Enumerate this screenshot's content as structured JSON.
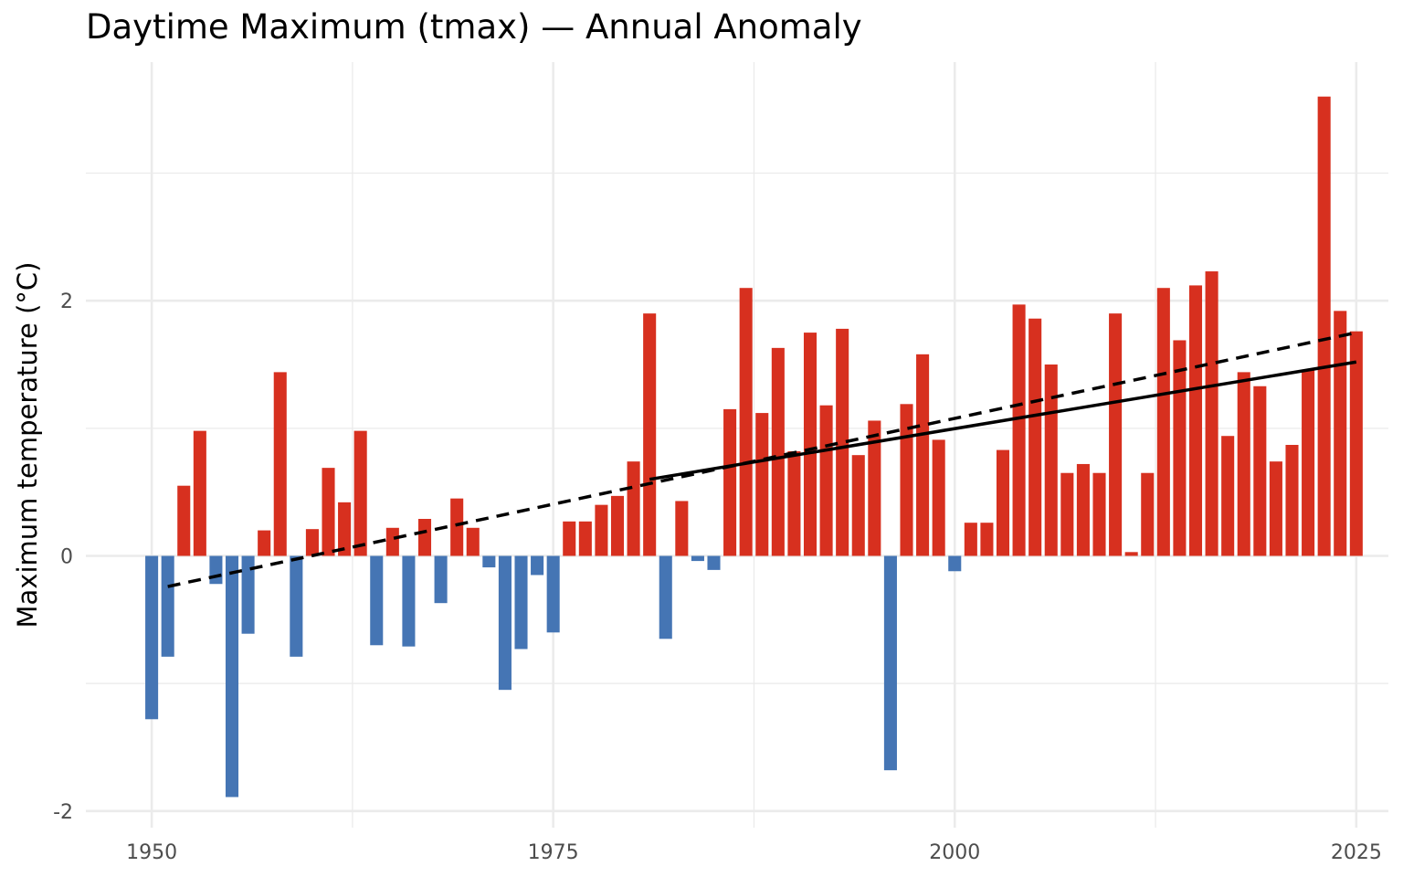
{
  "chart_data": {
    "type": "bar",
    "title": "Daytime Maximum (tmax) — Annual Anomaly",
    "xlabel": "",
    "ylabel": "Maximum temperature (°C)",
    "xlim": [
      1945.9,
      2027.0
    ],
    "ylim": [
      -2.13,
      3.87
    ],
    "x_ticks": [
      1950,
      1975,
      2000,
      2025
    ],
    "x_tick_labels": [
      "1950",
      "1975",
      "2000",
      "2025"
    ],
    "y_ticks": [
      -2,
      0,
      2
    ],
    "y_tick_labels": [
      "-2",
      "0",
      "2"
    ],
    "x_minor_ticks": [
      1962.5,
      1987.5,
      2012.5
    ],
    "y_minor_ticks": [
      -1,
      1,
      3
    ],
    "grid": true,
    "legend": "none",
    "colors": {
      "positive": "#d7301f",
      "negative": "#4575b4",
      "trend": "#000000"
    },
    "x": [
      1950,
      1951,
      1952,
      1953,
      1954,
      1955,
      1956,
      1957,
      1958,
      1959,
      1960,
      1961,
      1962,
      1963,
      1964,
      1965,
      1966,
      1967,
      1968,
      1969,
      1970,
      1971,
      1972,
      1973,
      1974,
      1975,
      1976,
      1977,
      1978,
      1979,
      1980,
      1981,
      1982,
      1983,
      1984,
      1985,
      1986,
      1987,
      1988,
      1989,
      1990,
      1991,
      1992,
      1993,
      1994,
      1995,
      1996,
      1997,
      1998,
      1999,
      2000,
      2001,
      2002,
      2003,
      2004,
      2005,
      2006,
      2007,
      2008,
      2009,
      2010,
      2011,
      2012,
      2013,
      2014,
      2015,
      2016,
      2017,
      2018,
      2019,
      2020,
      2021,
      2022,
      2023,
      2024,
      2025
    ],
    "values": [
      -1.28,
      -0.79,
      0.55,
      0.98,
      -0.22,
      -1.89,
      -0.61,
      0.2,
      1.44,
      -0.79,
      0.21,
      0.69,
      0.42,
      0.98,
      -0.7,
      0.22,
      -0.71,
      0.29,
      -0.37,
      0.45,
      0.22,
      -0.09,
      -1.05,
      -0.73,
      -0.15,
      -0.6,
      0.27,
      0.27,
      0.4,
      0.47,
      0.74,
      1.9,
      -0.65,
      0.43,
      -0.04,
      -0.11,
      1.15,
      2.1,
      1.12,
      1.63,
      0.82,
      1.75,
      1.18,
      1.78,
      0.79,
      1.06,
      -1.68,
      1.19,
      1.58,
      0.91,
      -0.12,
      0.26,
      0.26,
      0.83,
      1.97,
      1.86,
      1.5,
      0.65,
      0.72,
      0.65,
      1.9,
      0.03,
      0.65,
      2.1,
      1.69,
      2.12,
      2.23,
      0.94,
      1.44,
      1.33,
      0.74,
      0.87,
      1.46,
      3.6,
      1.92,
      1.76
    ],
    "trend_lines": [
      {
        "style": "dashed",
        "x": [
          1951,
          2025
        ],
        "y": [
          -0.24,
          1.75
        ]
      },
      {
        "style": "solid",
        "x": [
          1981,
          2025
        ],
        "y": [
          0.6,
          1.52
        ]
      }
    ]
  }
}
